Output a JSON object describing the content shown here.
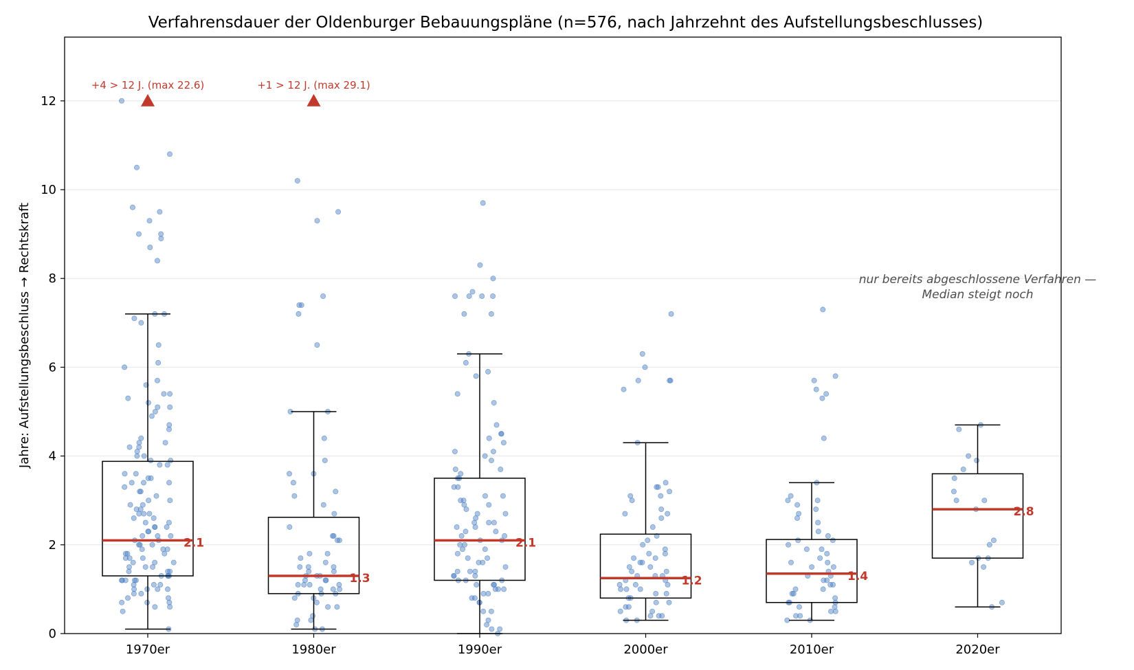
{
  "chart_data": {
    "type": "box",
    "title": "Verfahrensdauer der Oldenburger Bebauungspläne (n=576, nach Jahrzehnt des Aufstellungsbeschlusses)",
    "xlabel": "",
    "ylabel": "Jahre: Aufstellungsbeschluss → Rechtskraft",
    "ylim": [
      0,
      13.5
    ],
    "yticks": [
      0,
      2,
      4,
      6,
      8,
      10,
      12
    ],
    "grid": "horizontal",
    "categories": [
      "1970er",
      "1980er",
      "1990er",
      "2000er",
      "2010er",
      "2020er"
    ],
    "boxes": [
      {
        "category": "1970er",
        "whisker_low": 0.1,
        "q1": 1.3,
        "median": 2.1,
        "q3": 3.88,
        "whisker_high": 7.2,
        "median_label": "2.1"
      },
      {
        "category": "1980er",
        "whisker_low": 0.1,
        "q1": 0.9,
        "median": 1.3,
        "q3": 2.62,
        "whisker_high": 5.0,
        "median_label": "1.3"
      },
      {
        "category": "1990er",
        "whisker_low": 0.0,
        "q1": 1.2,
        "median": 2.1,
        "q3": 3.5,
        "whisker_high": 6.3,
        "median_label": "2.1"
      },
      {
        "category": "2000er",
        "whisker_low": 0.3,
        "q1": 0.8,
        "median": 1.25,
        "q3": 2.24,
        "whisker_high": 4.3,
        "median_label": "1.2"
      },
      {
        "category": "2010er",
        "whisker_low": 0.3,
        "q1": 0.7,
        "median": 1.35,
        "q3": 2.12,
        "whisker_high": 3.4,
        "median_label": "1.4"
      },
      {
        "category": "2020er",
        "whisker_low": 0.6,
        "q1": 1.7,
        "median": 2.8,
        "q3": 3.6,
        "whisker_high": 4.7,
        "median_label": "2.8"
      }
    ],
    "points": [
      {
        "category": "1970er",
        "values": [
          12.0,
          10.8,
          10.5,
          9.6,
          9.5,
          9.3,
          9.0,
          9.0,
          8.9,
          8.7,
          8.4,
          7.2,
          7.2,
          7.1,
          7.0,
          6.5,
          6.1,
          6.0,
          5.7,
          5.6,
          5.4,
          5.4,
          5.3,
          5.2,
          5.1,
          5.1,
          5.0,
          4.9,
          4.7,
          4.6,
          4.4,
          4.3,
          4.3,
          4.2,
          4.2,
          4.1,
          4.0,
          4.0,
          3.9,
          3.9,
          3.8,
          3.8,
          3.6,
          3.6,
          3.5,
          3.5,
          3.4,
          3.4,
          3.4,
          3.3,
          3.2,
          3.2,
          3.1,
          3.0,
          3.0,
          2.9,
          2.9,
          2.8,
          2.8,
          2.7,
          2.7,
          2.7,
          2.6,
          2.6,
          2.5,
          2.5,
          2.4,
          2.4,
          2.4,
          2.3,
          2.3,
          2.2,
          2.2,
          2.2,
          2.1,
          2.1,
          2.0,
          2.0,
          2.0,
          1.9,
          1.9,
          1.9,
          1.8,
          1.8,
          1.8,
          1.7,
          1.7,
          1.7,
          1.6,
          1.6,
          1.6,
          1.5,
          1.5,
          1.5,
          1.4,
          1.4,
          1.4,
          1.3,
          1.3,
          1.3,
          1.3,
          1.2,
          1.2,
          1.2,
          1.2,
          1.2,
          1.1,
          1.1,
          1.1,
          1.0,
          1.0,
          1.0,
          1.0,
          0.9,
          0.9,
          0.8,
          0.8,
          0.7,
          0.7,
          0.7,
          0.6,
          0.6,
          0.5,
          0.1
        ]
      },
      {
        "category": "1980er",
        "values": [
          10.2,
          9.5,
          9.3,
          7.6,
          7.4,
          7.4,
          7.2,
          6.5,
          5.0,
          5.0,
          4.4,
          3.9,
          3.6,
          3.6,
          3.4,
          3.2,
          3.1,
          2.9,
          2.7,
          2.4,
          2.2,
          2.2,
          2.1,
          2.1,
          1.8,
          1.8,
          1.7,
          1.6,
          1.5,
          1.5,
          1.5,
          1.4,
          1.4,
          1.3,
          1.3,
          1.3,
          1.2,
          1.2,
          1.2,
          1.1,
          1.1,
          1.1,
          1.1,
          1.0,
          1.0,
          1.0,
          0.9,
          0.9,
          0.9,
          0.8,
          0.8,
          0.7,
          0.6,
          0.6,
          0.4,
          0.3,
          0.3,
          0.2,
          0.1,
          0.1
        ]
      },
      {
        "category": "1990er",
        "values": [
          9.7,
          8.3,
          8.0,
          7.7,
          7.6,
          7.6,
          7.6,
          7.6,
          7.2,
          7.2,
          6.3,
          6.1,
          5.9,
          5.8,
          5.4,
          5.2,
          4.7,
          4.5,
          4.5,
          4.4,
          4.3,
          4.1,
          4.1,
          4.0,
          3.9,
          3.7,
          3.7,
          3.6,
          3.5,
          3.5,
          3.3,
          3.3,
          3.1,
          3.1,
          3.0,
          3.0,
          2.9,
          2.9,
          2.8,
          2.7,
          2.7,
          2.6,
          2.5,
          2.5,
          2.5,
          2.4,
          2.4,
          2.3,
          2.3,
          2.2,
          2.2,
          2.1,
          2.1,
          2.0,
          2.0,
          1.9,
          1.9,
          1.8,
          1.7,
          1.7,
          1.6,
          1.6,
          1.5,
          1.4,
          1.4,
          1.4,
          1.3,
          1.3,
          1.3,
          1.2,
          1.2,
          1.2,
          1.1,
          1.1,
          1.1,
          1.0,
          1.0,
          1.0,
          0.9,
          0.9,
          0.8,
          0.8,
          0.7,
          0.7,
          0.5,
          0.5,
          0.3,
          0.2,
          0.1,
          0.1,
          0.0
        ]
      },
      {
        "category": "2000er",
        "values": [
          7.2,
          6.3,
          6.0,
          5.7,
          5.7,
          5.7,
          5.5,
          4.3,
          3.4,
          3.3,
          3.3,
          3.2,
          3.1,
          3.1,
          3.0,
          2.8,
          2.7,
          2.7,
          2.6,
          2.4,
          2.2,
          2.1,
          2.0,
          1.9,
          1.8,
          1.8,
          1.7,
          1.7,
          1.6,
          1.6,
          1.5,
          1.5,
          1.4,
          1.4,
          1.3,
          1.3,
          1.3,
          1.2,
          1.2,
          1.1,
          1.1,
          1.1,
          1.0,
          1.0,
          1.0,
          0.9,
          0.9,
          0.8,
          0.8,
          0.7,
          0.7,
          0.6,
          0.6,
          0.5,
          0.5,
          0.4,
          0.4,
          0.4,
          0.3,
          0.3
        ]
      },
      {
        "category": "2010er",
        "values": [
          7.3,
          5.8,
          5.7,
          5.5,
          5.4,
          5.3,
          4.4,
          3.4,
          3.1,
          3.0,
          3.0,
          2.9,
          2.8,
          2.7,
          2.6,
          2.5,
          2.3,
          2.2,
          2.1,
          2.1,
          2.0,
          1.9,
          1.9,
          1.8,
          1.7,
          1.6,
          1.6,
          1.5,
          1.5,
          1.4,
          1.3,
          1.3,
          1.2,
          1.2,
          1.1,
          1.1,
          1.0,
          1.0,
          0.9,
          0.9,
          0.8,
          0.7,
          0.7,
          0.7,
          0.6,
          0.6,
          0.5,
          0.5,
          0.4,
          0.4,
          0.3,
          0.3
        ]
      },
      {
        "category": "2020er",
        "values": [
          4.7,
          4.6,
          4.0,
          3.9,
          3.7,
          3.5,
          3.2,
          3.0,
          3.0,
          2.8,
          2.1,
          2.0,
          1.7,
          1.7,
          1.6,
          1.5,
          0.7,
          0.6
        ]
      }
    ],
    "outlier_markers": [
      {
        "category": "1970er",
        "value": 12,
        "label": "+4 > 12 J. (max 22.6)"
      },
      {
        "category": "1980er",
        "value": 12,
        "label": "+1 > 12 J. (max 29.1)"
      }
    ],
    "annotation": {
      "line1": "nur bereits abgeschlossene Verfahren —",
      "line2": "Median steigt noch",
      "category": "2020er",
      "y": 7.8
    },
    "colors": {
      "points": "#4a7fc1",
      "median": "#c0392b",
      "box": "#000000",
      "grid": "#e6e6e6",
      "note": "#4d4d4d"
    }
  }
}
